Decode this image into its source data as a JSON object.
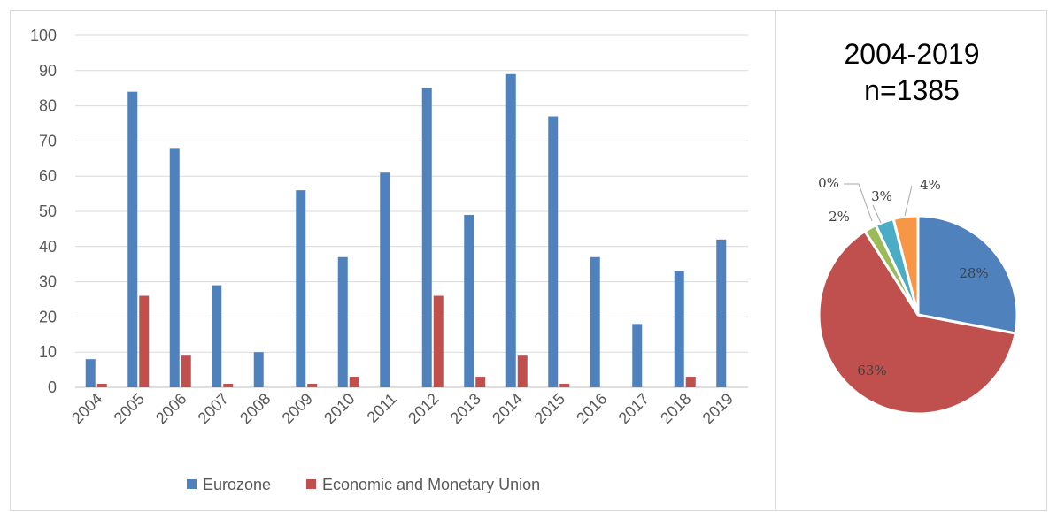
{
  "chart_data": [
    {
      "type": "bar",
      "categories": [
        "2004",
        "2005",
        "2006",
        "2007",
        "2008",
        "2009",
        "2010",
        "2011",
        "2012",
        "2013",
        "2014",
        "2015",
        "2016",
        "2017",
        "2018",
        "2019"
      ],
      "series": [
        {
          "name": "Eurozone",
          "color": "#4f81bd",
          "values": [
            8,
            84,
            68,
            29,
            10,
            56,
            37,
            61,
            85,
            49,
            89,
            77,
            37,
            18,
            33,
            42
          ]
        },
        {
          "name": "Economic and Monetary Union",
          "color": "#c0504d",
          "values": [
            1,
            26,
            9,
            1,
            0,
            1,
            3,
            0,
            26,
            3,
            9,
            1,
            0,
            0,
            3,
            0
          ]
        }
      ],
      "ylim": [
        0,
        100
      ],
      "yticks": [
        0,
        10,
        20,
        30,
        40,
        50,
        60,
        70,
        80,
        90,
        100
      ],
      "grid": true,
      "legend": "bottom",
      "xlabel": "",
      "ylabel": ""
    },
    {
      "type": "pie",
      "title_lines": [
        "2004-2019",
        "n=1385"
      ],
      "slices": [
        {
          "label": "28%",
          "value": 28,
          "color": "#4f81bd"
        },
        {
          "label": "63%",
          "value": 63,
          "color": "#c0504d"
        },
        {
          "label": "2%",
          "value": 2,
          "color": "#9bbb59"
        },
        {
          "label": "0%",
          "value": 0,
          "color": "#8064a2"
        },
        {
          "label": "3%",
          "value": 3,
          "color": "#4bacc6"
        },
        {
          "label": "4%",
          "value": 4,
          "color": "#f79646"
        }
      ]
    }
  ]
}
